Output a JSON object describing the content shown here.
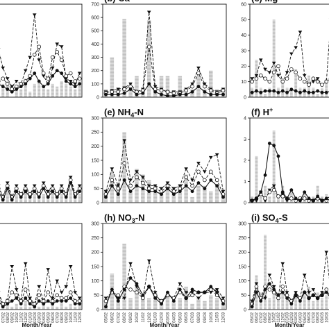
{
  "figure": {
    "x_axis_title": "Month/Year",
    "x_tick_labels": [
      "05/02",
      "06/02",
      "07/02",
      "08/02",
      "09/02",
      "10/02",
      "11/02",
      "12/02",
      "01/03",
      "02/03",
      "03/03",
      "04/03",
      "05/03",
      "06/03",
      "07/03",
      "08/03",
      "09/03",
      "10/03",
      "11/03",
      "12/03"
    ],
    "colors": {
      "bar": "#d2d2d2",
      "axis": "#111111",
      "line": "#111111"
    }
  },
  "chart_data": [
    {
      "id": "a",
      "type": "bar",
      "title": "",
      "ylim": [
        0,
        70
      ],
      "yticks": [],
      "bars": [
        4,
        6,
        10,
        12,
        0,
        8,
        6,
        14,
        4,
        10,
        12,
        8,
        6,
        10,
        8,
        12,
        10,
        8,
        6,
        12
      ],
      "series": [
        {
          "marker": "triangle-down",
          "dash": "dashed",
          "values": [
            30,
            36,
            22,
            14,
            8,
            12,
            10,
            20,
            30,
            62,
            28,
            16,
            10,
            22,
            40,
            38,
            14,
            12,
            10,
            18
          ]
        },
        {
          "marker": "circle-open",
          "dash": "dashed",
          "values": [
            10,
            12,
            14,
            10,
            6,
            8,
            10,
            12,
            16,
            32,
            38,
            18,
            14,
            30,
            34,
            28,
            16,
            18,
            12,
            14
          ]
        },
        {
          "marker": "circle-filled",
          "dash": "solid",
          "values": [
            12,
            10,
            8,
            6,
            4,
            6,
            8,
            10,
            14,
            18,
            12,
            8,
            10,
            16,
            20,
            18,
            12,
            10,
            8,
            10
          ]
        }
      ]
    },
    {
      "id": "b",
      "type": "bar",
      "title": "(b) Ca",
      "ylim": [
        0,
        700
      ],
      "yticks": [
        0,
        100,
        200,
        300,
        400,
        500,
        600,
        700
      ],
      "bars": [
        60,
        300,
        60,
        590,
        60,
        160,
        60,
        580,
        60,
        160,
        160,
        30,
        160,
        60,
        60,
        160,
        60,
        200,
        60,
        60
      ],
      "series": [
        {
          "marker": "triangle-down",
          "dash": "dashed",
          "values": [
            40,
            50,
            60,
            70,
            100,
            40,
            60,
            640,
            80,
            60,
            40,
            40,
            40,
            60,
            100,
            220,
            100,
            60,
            40,
            60
          ]
        },
        {
          "marker": "circle-open",
          "dash": "dashed",
          "values": [
            30,
            40,
            40,
            60,
            80,
            40,
            50,
            380,
            60,
            50,
            40,
            30,
            30,
            50,
            80,
            180,
            80,
            50,
            30,
            50
          ]
        },
        {
          "marker": "circle-filled",
          "dash": "solid",
          "values": [
            20,
            20,
            20,
            30,
            60,
            20,
            30,
            100,
            40,
            20,
            10,
            10,
            20,
            20,
            40,
            80,
            40,
            20,
            20,
            20
          ]
        }
      ]
    },
    {
      "id": "c",
      "type": "bar",
      "title": "(c) Mg",
      "ylim": [
        0,
        60
      ],
      "yticks": [
        0,
        10,
        20,
        30,
        40,
        50,
        60
      ],
      "bars": [
        6,
        24,
        6,
        2,
        6,
        50,
        6,
        12,
        6,
        6,
        18,
        6,
        6,
        14,
        6,
        2,
        6,
        12,
        6,
        6
      ],
      "series": [
        {
          "marker": "triangle-down",
          "dash": "dashed",
          "values": [
            12,
            14,
            24,
            18,
            16,
            22,
            14,
            10,
            16,
            28,
            32,
            42,
            14,
            8,
            10,
            12,
            8,
            10,
            50,
            12
          ]
        },
        {
          "marker": "circle-open",
          "dash": "dashed",
          "values": [
            10,
            12,
            14,
            12,
            10,
            16,
            20,
            10,
            12,
            18,
            16,
            12,
            10,
            8,
            12,
            10,
            8,
            10,
            12,
            10
          ]
        },
        {
          "marker": "circle-filled",
          "dash": "solid",
          "values": [
            3,
            4,
            3,
            4,
            4,
            4,
            3,
            4,
            3,
            5,
            4,
            3,
            4,
            3,
            3,
            4,
            3,
            3,
            4,
            3
          ]
        }
      ]
    },
    {
      "id": "d",
      "type": "bar",
      "title": "",
      "ylim": [
        0,
        300
      ],
      "yticks": [],
      "bars": [
        30,
        60,
        30,
        40,
        30,
        30,
        30,
        40,
        30,
        30,
        40,
        30,
        30,
        40,
        30,
        30,
        30,
        50,
        30,
        30
      ],
      "series": [
        {
          "marker": "triangle-down",
          "dash": "dashed",
          "values": [
            40,
            60,
            20,
            70,
            20,
            60,
            30,
            60,
            30,
            60,
            30,
            70,
            40,
            60,
            30,
            60,
            30,
            90,
            30,
            60
          ]
        },
        {
          "marker": "circle-open",
          "dash": "dashed",
          "values": [
            30,
            50,
            20,
            60,
            20,
            50,
            30,
            50,
            30,
            50,
            30,
            60,
            30,
            50,
            30,
            50,
            30,
            80,
            30,
            50
          ]
        },
        {
          "marker": "circle-filled",
          "dash": "solid",
          "values": [
            20,
            40,
            10,
            50,
            10,
            40,
            20,
            40,
            20,
            40,
            20,
            50,
            20,
            40,
            20,
            40,
            20,
            70,
            20,
            40
          ]
        }
      ]
    },
    {
      "id": "e",
      "type": "bar",
      "title": "(e) NH4-N",
      "title_main": "(e) NH",
      "title_sub": "4",
      "title_rest": "-N",
      "ylim": [
        0,
        300
      ],
      "yticks": [
        0,
        50,
        100,
        150,
        200,
        250,
        300
      ],
      "bars": [
        40,
        110,
        60,
        250,
        40,
        120,
        100,
        80,
        60,
        30,
        60,
        50,
        60,
        100,
        20,
        60,
        60,
        40,
        60,
        30
      ],
      "series": [
        {
          "marker": "triangle-down",
          "dash": "dashed",
          "values": [
            40,
            120,
            60,
            220,
            80,
            110,
            90,
            60,
            60,
            50,
            70,
            50,
            60,
            120,
            80,
            140,
            110,
            160,
            170,
            40
          ]
        },
        {
          "marker": "circle-open",
          "dash": "dashed",
          "values": [
            30,
            80,
            50,
            140,
            60,
            90,
            70,
            50,
            50,
            40,
            60,
            40,
            50,
            90,
            60,
            110,
            80,
            110,
            80,
            30
          ]
        },
        {
          "marker": "circle-filled",
          "dash": "solid",
          "values": [
            20,
            60,
            30,
            80,
            40,
            60,
            50,
            40,
            40,
            30,
            50,
            30,
            40,
            60,
            40,
            70,
            50,
            80,
            60,
            20
          ]
        }
      ]
    },
    {
      "id": "f",
      "type": "bar",
      "title": "(f) H+",
      "title_main": "(f) H",
      "title_sup": "+",
      "ylim": [
        0,
        4
      ],
      "yticks": [
        0,
        1,
        2,
        3,
        4
      ],
      "bars": [
        0.3,
        2.2,
        0.3,
        0.8,
        0.3,
        3.4,
        0.3,
        0.8,
        0.3,
        0.5,
        0.3,
        0.3,
        0.5,
        0.3,
        0.3,
        0.8,
        0.3,
        0.4,
        0.3,
        0.3
      ],
      "series": [
        {
          "marker": "triangle-down",
          "dash": "dashed",
          "values": [
            0.1,
            0.1,
            0.5,
            0.1,
            0.6,
            0.8,
            0.3,
            0.4,
            0.1,
            0.2,
            0.1,
            0.1,
            0.2,
            0.1,
            0.1,
            0.2,
            0.1,
            0.1,
            0.2,
            0.1
          ]
        },
        {
          "marker": "circle-open",
          "dash": "dashed",
          "values": [
            0.1,
            0.2,
            0.4,
            0.2,
            0.5,
            0.6,
            0.3,
            0.3,
            0.2,
            0.2,
            0.1,
            0.2,
            0.2,
            0.1,
            0.1,
            0.2,
            0.1,
            0.1,
            0.1,
            0.1
          ]
        },
        {
          "marker": "circle-filled",
          "dash": "solid",
          "values": [
            0.1,
            0.2,
            0.5,
            1.3,
            2.8,
            2.7,
            2.2,
            0.5,
            0.2,
            0.6,
            0.2,
            0.1,
            0.5,
            0.2,
            0.1,
            0.3,
            0.1,
            0.2,
            0.3,
            0.1
          ]
        }
      ]
    },
    {
      "id": "g",
      "type": "bar",
      "title": "",
      "ylim": [
        0,
        300
      ],
      "yticks": [],
      "bars": [
        10,
        20,
        10,
        40,
        10,
        20,
        10,
        30,
        10,
        20,
        10,
        30,
        10,
        20,
        10,
        30,
        10,
        20,
        10,
        20
      ],
      "series": [
        {
          "marker": "triangle-down",
          "dash": "dashed",
          "values": [
            40,
            60,
            20,
            30,
            150,
            70,
            30,
            160,
            40,
            20,
            80,
            30,
            140,
            40,
            100,
            60,
            80,
            150,
            60,
            40
          ]
        },
        {
          "marker": "circle-open",
          "dash": "dashed",
          "values": [
            30,
            40,
            20,
            30,
            60,
            50,
            30,
            70,
            30,
            20,
            50,
            30,
            60,
            30,
            50,
            40,
            40,
            60,
            30,
            30
          ]
        },
        {
          "marker": "circle-filled",
          "dash": "solid",
          "values": [
            20,
            30,
            10,
            20,
            30,
            40,
            20,
            40,
            20,
            10,
            30,
            20,
            30,
            20,
            30,
            30,
            30,
            40,
            20,
            20
          ]
        }
      ]
    },
    {
      "id": "h",
      "type": "bar",
      "title": "(h) NO3-N",
      "title_main": "(h) NO",
      "title_sub": "3",
      "title_rest": "-N",
      "ylim": [
        0,
        300
      ],
      "yticks": [
        0,
        50,
        100,
        150,
        200,
        250,
        300
      ],
      "bars": [
        30,
        125,
        50,
        230,
        40,
        80,
        50,
        40,
        60,
        20,
        50,
        30,
        40,
        80,
        20,
        40,
        30,
        50,
        40,
        20
      ],
      "series": [
        {
          "marker": "triangle-down",
          "dash": "dashed",
          "values": [
            40,
            60,
            40,
            40,
            160,
            80,
            40,
            170,
            60,
            20,
            50,
            40,
            90,
            60,
            60,
            40,
            60,
            60,
            70,
            40
          ]
        },
        {
          "marker": "circle-open",
          "dash": "dashed",
          "values": [
            30,
            60,
            50,
            80,
            70,
            60,
            40,
            80,
            50,
            30,
            50,
            40,
            60,
            40,
            50,
            60,
            60,
            70,
            50,
            30
          ]
        },
        {
          "marker": "circle-filled",
          "dash": "solid",
          "values": [
            10,
            70,
            30,
            70,
            110,
            90,
            50,
            80,
            40,
            20,
            60,
            30,
            70,
            40,
            70,
            60,
            60,
            80,
            60,
            20
          ]
        }
      ]
    },
    {
      "id": "i",
      "type": "bar",
      "title": "(i) SO4-S",
      "title_main": "(i) SO",
      "title_sub": "4",
      "title_rest": "-S",
      "ylim": [
        0,
        300
      ],
      "yticks": [
        0,
        50,
        100,
        150,
        200,
        250,
        300
      ],
      "bars": [
        30,
        120,
        60,
        260,
        40,
        80,
        60,
        60,
        40,
        20,
        60,
        40,
        50,
        80,
        30,
        60,
        40,
        50,
        40,
        30
      ],
      "series": [
        {
          "marker": "triangle-down",
          "dash": "dashed",
          "values": [
            30,
            90,
            40,
            40,
            120,
            80,
            40,
            160,
            60,
            30,
            60,
            40,
            120,
            60,
            70,
            40,
            60,
            200,
            60,
            40
          ]
        },
        {
          "marker": "circle-open",
          "dash": "dashed",
          "values": [
            20,
            80,
            40,
            80,
            70,
            60,
            40,
            80,
            50,
            30,
            50,
            40,
            60,
            40,
            50,
            40,
            50,
            70,
            40,
            30
          ]
        },
        {
          "marker": "circle-filled",
          "dash": "solid",
          "values": [
            10,
            60,
            30,
            70,
            90,
            70,
            50,
            60,
            40,
            20,
            50,
            30,
            60,
            40,
            50,
            40,
            50,
            60,
            40,
            20
          ]
        }
      ]
    }
  ]
}
